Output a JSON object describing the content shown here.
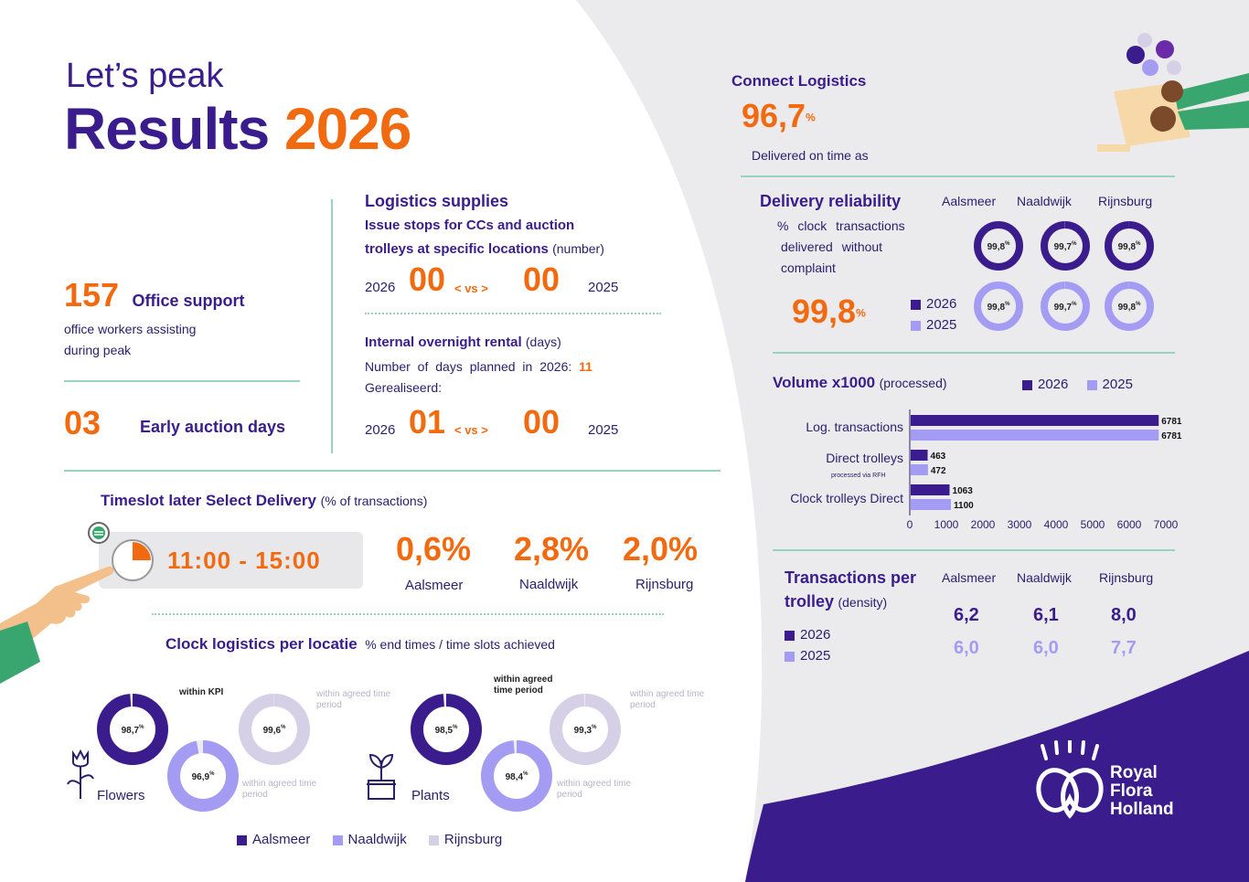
{
  "header": {
    "subtitle": "Let’s peak",
    "title_word": "Results",
    "title_year": "2026"
  },
  "office": {
    "value": "157",
    "label": "Office support",
    "desc1": "office workers assisting",
    "desc2": "during peak"
  },
  "early": {
    "value": "03",
    "label": "Early auction days"
  },
  "supplies": {
    "title": "Logistics supplies",
    "line1": "Issue stops for CCs and auction",
    "line2": "trolleys at specific locations",
    "line2_unit": "(number)",
    "year_a": "2026",
    "val_a": "00",
    "vs": "< vs >",
    "val_b": "00",
    "year_b": "2025"
  },
  "rental": {
    "title": "Internal overnight rental",
    "unit": "(days)",
    "line1": "Number of days planned in 2026:",
    "planned": "11",
    "line2": "Gerealiseerd:",
    "year_a": "2026",
    "val_a": "01",
    "vs": "< vs >",
    "val_b": "00",
    "year_b": "2025"
  },
  "timeslot": {
    "title": "Timeslot later Select Delivery",
    "unit": "(% of transactions)",
    "time": "11:00 - 15:00",
    "items": [
      {
        "value": "0,6%",
        "location": "Aalsmeer"
      },
      {
        "value": "2,8%",
        "location": "Naaldwijk"
      },
      {
        "value": "2,0%",
        "location": "Rijnsburg"
      }
    ]
  },
  "clock": {
    "title": "Clock logistics per locatie",
    "unit": "% end times / time slots achieved",
    "flowers_label": "Flowers",
    "plants_label": "Plants",
    "flowers": [
      {
        "value": 98.7,
        "label": "98,7",
        "note": "within KPI"
      },
      {
        "value": 96.9,
        "label": "96,9",
        "note": "within agreed time period"
      },
      {
        "value": 99.6,
        "label": "99,6",
        "note": "within agreed time period"
      }
    ],
    "plants": [
      {
        "value": 98.5,
        "label": "98,5",
        "note": "within agreed time period"
      },
      {
        "value": 98.4,
        "label": "98,4",
        "note": "within agreed time period"
      },
      {
        "value": 99.3,
        "label": "99,3",
        "note": "within agreed time period"
      }
    ],
    "legend": [
      "Aalsmeer",
      "Naaldwijk",
      "Rijnsburg"
    ],
    "colors": {
      "aalsmeer": "#3a1c8c",
      "naaldwijk": "#a49cf2",
      "rijnsburg": "#d6d0e6"
    }
  },
  "connect": {
    "title": "Connect Logistics",
    "value": "96,7",
    "pct": "%",
    "desc": "Delivered on time as"
  },
  "reliability": {
    "title": "Delivery reliability",
    "desc1": "% clock transactions",
    "desc2": "delivered without",
    "desc3": "complaint",
    "big_value": "99,8",
    "pct": "%",
    "locations": [
      "Aalsmeer",
      "Naaldwijk",
      "Rijnsburg"
    ],
    "values_2026": [
      {
        "value": 99.8,
        "label": "99,8"
      },
      {
        "value": 99.7,
        "label": "99,7"
      },
      {
        "value": 99.8,
        "label": "99,8"
      }
    ],
    "values_2025": [
      {
        "value": 99.8,
        "label": "99,8"
      },
      {
        "value": 99.7,
        "label": "99,7"
      },
      {
        "value": 99.8,
        "label": "99,8"
      }
    ],
    "legend": [
      "2026",
      "2025"
    ]
  },
  "volume": {
    "title": "Volume x1000",
    "unit": "(processed)",
    "legend": [
      "2026",
      "2025"
    ],
    "sublabel": "processed via RFH"
  },
  "chart_data": {
    "type": "bar",
    "orientation": "horizontal",
    "categories": [
      "Log. transactions",
      "Direct trolleys",
      "Clock trolleys Direct"
    ],
    "series": [
      {
        "name": "2026",
        "values": [
          6781,
          463,
          1063
        ],
        "color": "#3a1c8c"
      },
      {
        "name": "2025",
        "values": [
          6781,
          472,
          1100
        ],
        "color": "#a49cf2"
      }
    ],
    "xlim": [
      0,
      7000
    ],
    "xticks": [
      0,
      1000,
      2000,
      3000,
      4000,
      5000,
      6000,
      7000
    ]
  },
  "density": {
    "title1": "Transactions per",
    "title2": "trolley",
    "unit": "(density)",
    "locations": [
      "Aalsmeer",
      "Naaldwijk",
      "Rijnsburg"
    ],
    "values_2026": [
      "6,2",
      "6,1",
      "8,0"
    ],
    "values_2025": [
      "6,0",
      "6,0",
      "7,7"
    ],
    "legend": [
      "2026",
      "2025"
    ]
  },
  "brand": {
    "line1": "Royal",
    "line2": "Flora",
    "line3": "Holland"
  },
  "colors": {
    "purple": "#3a1c8c",
    "orange": "#f26a10",
    "lilac": "#a49cf2",
    "light": "#d6d0e6",
    "green": "#9ad3bd"
  }
}
